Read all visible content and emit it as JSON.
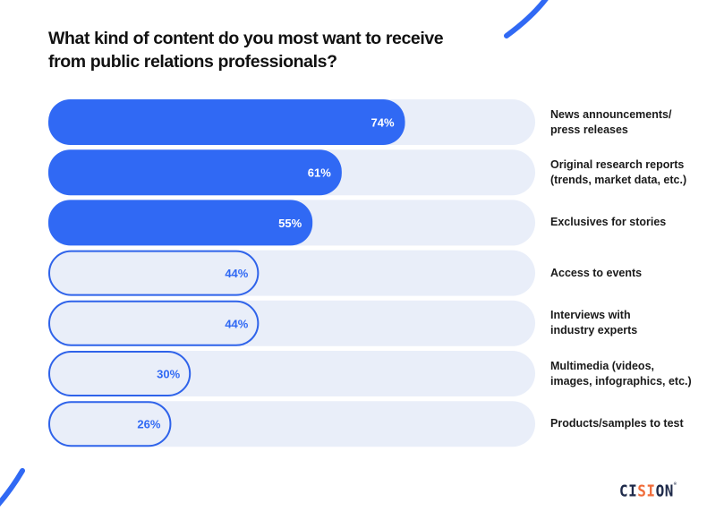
{
  "colors": {
    "primary": "#3069f4",
    "track": "#e9eef9",
    "outline": "#2f63ea",
    "title": "#111111",
    "logo_dark": "#1e2a4a",
    "logo_accent": "#f06c3a"
  },
  "chart_data": {
    "type": "bar",
    "orientation": "horizontal",
    "title": "What kind of content do you most want to receive from public relations professionals?",
    "title_lines": [
      "What kind of content do you most want to receive",
      "from public relations professionals?"
    ],
    "xlabel": "",
    "ylabel": "",
    "xlim": [
      0,
      100
    ],
    "unit": "%",
    "grid": false,
    "legend": "none",
    "categories": [
      "News announcements/ press releases",
      "Original research reports (trends, market data, etc.)",
      "Exclusives for stories",
      "Access to events",
      "Interviews with industry experts",
      "Multimedia (videos, images, infographics, etc.)",
      "Products/samples to test"
    ],
    "category_lines": [
      [
        "News announcements/",
        "press releases"
      ],
      [
        "Original research reports",
        "(trends, market data, etc.)"
      ],
      [
        "Exclusives for stories"
      ],
      [
        "Access to events"
      ],
      [
        "Interviews with",
        "industry experts"
      ],
      [
        "Multimedia (videos,",
        "images, infographics, etc.)"
      ],
      [
        "Products/samples to test"
      ]
    ],
    "values": [
      74,
      61,
      55,
      44,
      44,
      30,
      26
    ],
    "data_labels": [
      "74%",
      "61%",
      "55%",
      "44%",
      "44%",
      "30%",
      "26%"
    ],
    "highlighted": [
      true,
      true,
      true,
      false,
      false,
      false,
      false
    ]
  },
  "brand": {
    "logo_parts": [
      "C",
      "I",
      "S",
      "I",
      "O",
      "N"
    ],
    "logo_text": "CISION"
  }
}
